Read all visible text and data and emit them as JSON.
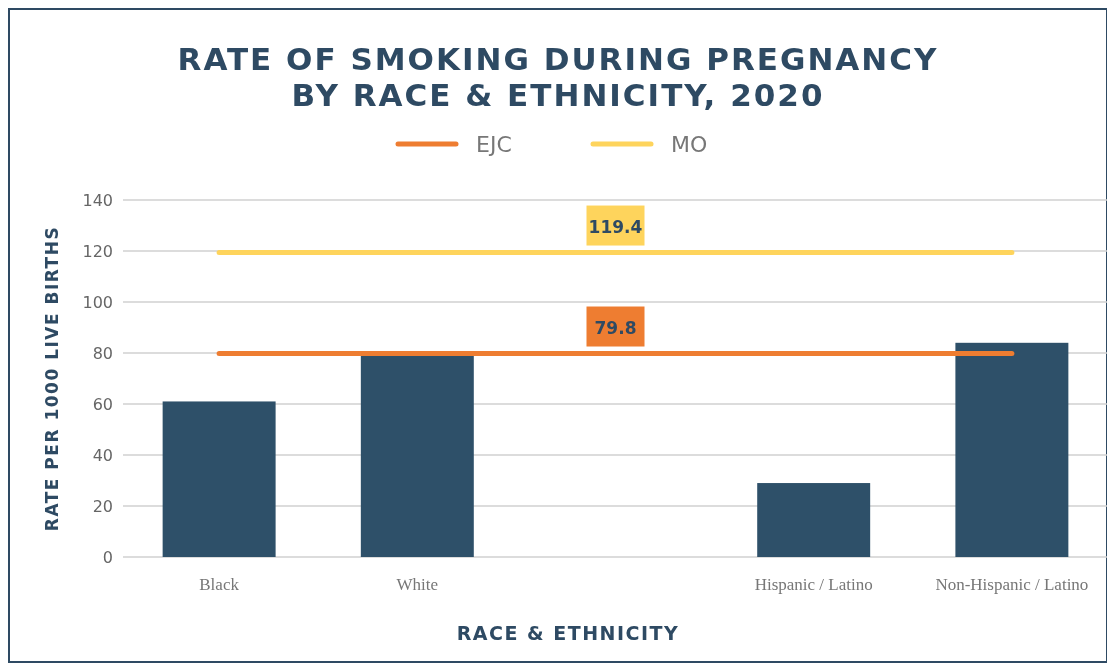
{
  "chart_data": {
    "type": "bar",
    "title": "RATE OF SMOKING DURING PREGNANCY\nBY RACE & ETHNICITY, 2020",
    "xlabel": "RACE & ETHNICITY",
    "ylabel": "RATE PER 1000 LIVE BIRTHS",
    "categories": [
      "Black",
      "White",
      null,
      "Hispanic / Latino",
      "Non-Hispanic / Latino"
    ],
    "series": [
      {
        "color": "#2e5069",
        "values": [
          61,
          79,
          null,
          29,
          84
        ]
      },
      {
        "type": "line",
        "name": "EJC",
        "color": "#ee7d31",
        "values": [
          79.8,
          79.8,
          79.8,
          79.8,
          79.8
        ],
        "value_labels": [
          null,
          null,
          "79.8",
          null,
          null
        ]
      },
      {
        "type": "line",
        "name": "MO",
        "color": "#fed45c",
        "values": [
          119.4,
          119.4,
          119.4,
          119.4,
          119.4
        ],
        "value_labels": [
          null,
          null,
          "119.4",
          null,
          null
        ]
      }
    ],
    "ylim": [
      0,
      140
    ],
    "yticks": [
      0,
      20,
      40,
      60,
      80,
      100,
      120,
      140
    ],
    "grid": "y",
    "legend": "top",
    "line_style": "solid",
    "marker": "none"
  }
}
